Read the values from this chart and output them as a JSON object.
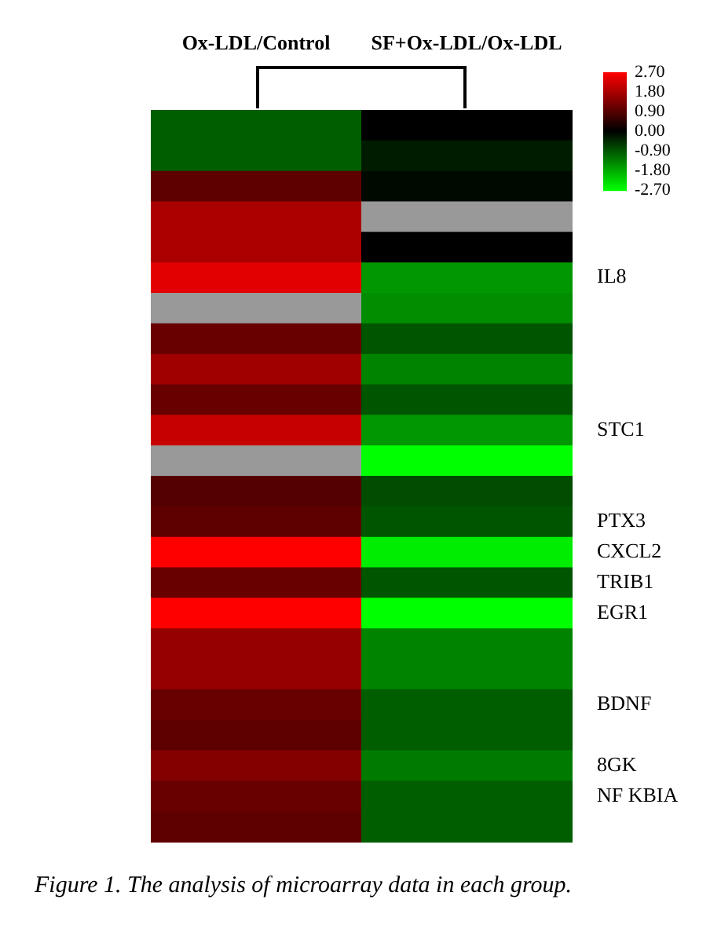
{
  "chart_data": {
    "type": "heatmap",
    "categories": [
      "Ox-LDL/Control",
      "SF+Ox-LDL/Ox-LDL"
    ],
    "y_categories": [
      null,
      null,
      null,
      null,
      null,
      "IL8",
      null,
      null,
      null,
      null,
      "STC1",
      null,
      null,
      "PTX3",
      "CXCL2",
      "TRIB1",
      "EGR1",
      null,
      null,
      "BDNF",
      null,
      "8GK",
      "NF KBIA",
      null
    ],
    "cells": [
      [
        -1.0,
        0.0
      ],
      [
        -1.0,
        -0.3
      ],
      [
        1.0,
        -0.1
      ],
      [
        1.8,
        null
      ],
      [
        1.8,
        0.0
      ],
      [
        2.4,
        -1.6
      ],
      [
        null,
        -1.5
      ],
      [
        1.1,
        -0.9
      ],
      [
        1.7,
        -1.4
      ],
      [
        1.1,
        -0.9
      ],
      [
        2.1,
        -1.6
      ],
      [
        null,
        -2.7
      ],
      [
        0.9,
        -0.8
      ],
      [
        1.0,
        -0.9
      ],
      [
        2.7,
        -2.5
      ],
      [
        1.1,
        -0.9
      ],
      [
        2.7,
        -2.7
      ],
      [
        1.6,
        -1.4
      ],
      [
        1.6,
        -1.4
      ],
      [
        1.1,
        -1.0
      ],
      [
        1.0,
        -1.0
      ],
      [
        1.4,
        -1.3
      ],
      [
        1.1,
        -1.0
      ],
      [
        1.0,
        -1.0
      ]
    ],
    "clim": [
      -2.7,
      2.7
    ],
    "cticks": [
      {
        "value": 2.7,
        "label": "2.70"
      },
      {
        "value": 1.8,
        "label": "1.80"
      },
      {
        "value": 0.9,
        "label": "0.90"
      },
      {
        "value": 0,
        "label": "0.00"
      },
      {
        "value": -0.9,
        "label": "-0.90"
      },
      {
        "value": -1.8,
        "label": "-1.80"
      },
      {
        "value": -2.7,
        "label": "-2.70"
      }
    ],
    "annotations": [
      "Figure 1. The analysis of microarray data in each group."
    ]
  }
}
